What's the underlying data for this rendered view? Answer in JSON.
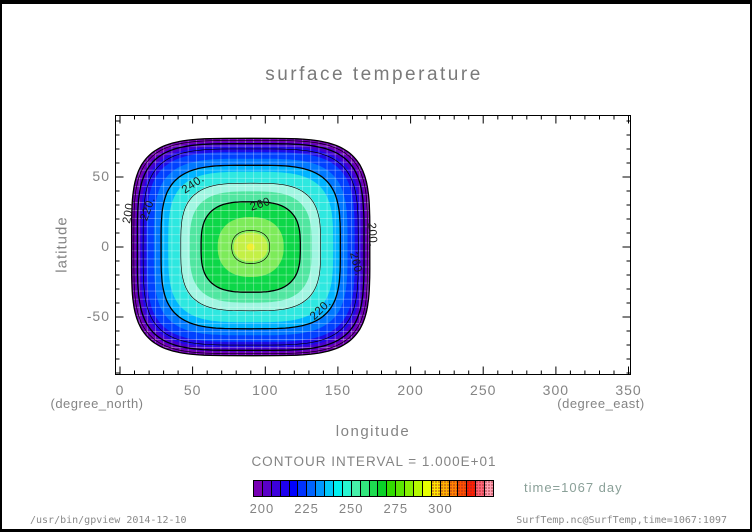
{
  "frame": {
    "statusbar_left": "/usr/bin/gpview  2014-12-10",
    "statusbar_right": "SurfTemp.nc@SurfTemp,time=1067:1097"
  },
  "chart_data": {
    "type": "filled-contour",
    "title": "surface temperature",
    "xlabel": "longitude",
    "ylabel": "latitude",
    "x_unit_label": "(degree_east)",
    "y_unit_label": "(degree_north)",
    "xlim": [
      -3,
      352
    ],
    "ylim": [
      -92,
      94
    ],
    "x_ticks": [
      0,
      50,
      100,
      150,
      200,
      250,
      300,
      350
    ],
    "y_ticks": [
      -50,
      0,
      50
    ],
    "minor_tick_step": 10,
    "contour_interval": 10,
    "contour_interval_label": "CONTOUR INTERVAL = 1.000E+01",
    "time_label": "time=1067 day",
    "contour_levels_thick": [
      200,
      220,
      240,
      260
    ],
    "contour_levels_thin": [
      210,
      230,
      250,
      270
    ],
    "peak": {
      "lon": 90,
      "lat": 0,
      "value_above": 270
    },
    "contour_labels": [
      {
        "text": "200.",
        "x": 17,
        "y": 97,
        "rot": -80
      },
      {
        "text": "220.",
        "x": 36,
        "y": 95,
        "rot": -70
      },
      {
        "text": "240.",
        "x": 80,
        "y": 72,
        "rot": -34
      },
      {
        "text": "260.",
        "x": 148,
        "y": 92,
        "rot": -18
      },
      {
        "text": "260.",
        "x": 238,
        "y": 150,
        "rot": 76
      },
      {
        "text": "220.",
        "x": 208,
        "y": 197,
        "rot": -44
      },
      {
        "text": "200.",
        "x": 254,
        "y": 120,
        "rot": 86
      }
    ],
    "band_colors": [
      "#7000b4",
      "#4600cd",
      "#1e0ae6",
      "#0041ff",
      "#0078ff",
      "#00b4ff",
      "#2ee8e0",
      "#a0f5e1",
      "#50e6a0",
      "#0cd748",
      "#7deb5a",
      "#c3f046",
      "#f0ee32"
    ],
    "colorbar": {
      "range": [
        195,
        330
      ],
      "tick_labels": [
        200,
        225,
        250,
        275,
        300
      ],
      "dotted_from_index": 20,
      "colors": [
        "#7800b4",
        "#5a00c8",
        "#3c00dc",
        "#1e00f0",
        "#0000ff",
        "#0032ff",
        "#0064ff",
        "#0096ff",
        "#00c8fa",
        "#00f0f0",
        "#28f5d2",
        "#46f0aa",
        "#32e67d",
        "#1edc50",
        "#0ad228",
        "#32dc00",
        "#5ae600",
        "#86f000",
        "#b4fa00",
        "#e6ff00",
        "#ffe600",
        "#ffb400",
        "#ff8200",
        "#ff5000",
        "#ff1e00",
        "#ff6478",
        "#ffa0b4"
      ]
    }
  }
}
